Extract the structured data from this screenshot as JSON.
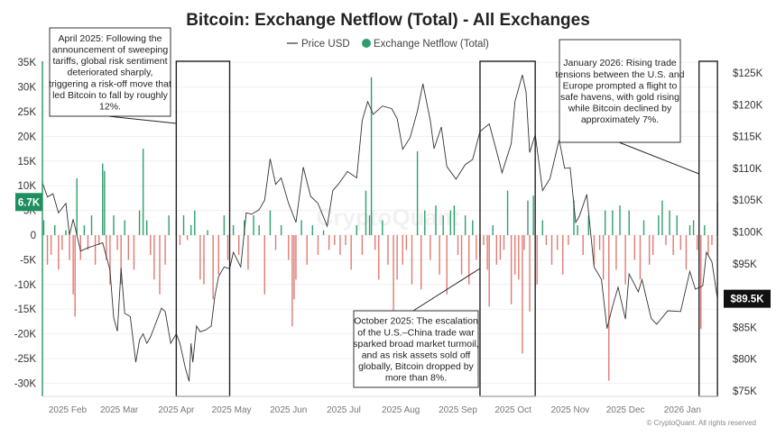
{
  "chart_data": {
    "type": "bar+line",
    "title": "Bitcoin: Exchange Netflow (Total) - All Exchanges",
    "legend": {
      "placement": "top-center",
      "items": [
        "Price USD",
        "Exchange Netflow (Total)"
      ]
    },
    "colors": {
      "price": "#333333",
      "inflow": "#2e9e6e",
      "outflow": "#e07a72",
      "current_netflow_badge": "#1f8f5f",
      "current_price_badge": "#111111"
    },
    "left_axis": {
      "ticks": [
        "35K",
        "30K",
        "25K",
        "20K",
        "15K",
        "10K",
        "5K",
        "0",
        "-5K",
        "-10K",
        "-15K",
        "-20K",
        "-25K",
        "-30K"
      ],
      "values": [
        35000,
        30000,
        25000,
        20000,
        15000,
        10000,
        5000,
        0,
        -5000,
        -10000,
        -15000,
        -20000,
        -25000,
        -30000
      ],
      "range": [
        -32500,
        35000
      ]
    },
    "right_axis": {
      "ticks": [
        "$125K",
        "$120K",
        "$115K",
        "$110K",
        "$105K",
        "$100K",
        "$95K",
        "$90K",
        "$85K",
        "$80K",
        "$75K"
      ],
      "values": [
        125000,
        120000,
        115000,
        110000,
        105000,
        100000,
        95000,
        90000,
        85000,
        80000,
        75000
      ],
      "range": [
        74000,
        127000
      ]
    },
    "x_axis": {
      "range": [
        "2025-01-18",
        "2026-01-20"
      ],
      "ticks": [
        {
          "date": "2025-02-01",
          "label": "2025 Feb"
        },
        {
          "date": "2025-03-01",
          "label": "2025 Mar"
        },
        {
          "date": "2025-04-01",
          "label": "2025 Apr"
        },
        {
          "date": "2025-05-01",
          "label": "2025 May"
        },
        {
          "date": "2025-06-01",
          "label": "2025 Jun"
        },
        {
          "date": "2025-07-01",
          "label": "2025 Jul"
        },
        {
          "date": "2025-08-01",
          "label": "2025 Aug"
        },
        {
          "date": "2025-09-01",
          "label": "2025 Sep"
        },
        {
          "date": "2025-10-01",
          "label": "2025 Oct"
        },
        {
          "date": "2025-11-01",
          "label": "2025 Nov"
        },
        {
          "date": "2025-12-01",
          "label": "2025 Dec"
        },
        {
          "date": "2026-01-01",
          "label": "2026 Jan"
        }
      ]
    },
    "grid": true,
    "current_netflow_label": "6.7K",
    "current_price_label": "$89.5K",
    "price_usd": [
      [
        "2025-01-18",
        108000
      ],
      [
        "2025-01-21",
        105500
      ],
      [
        "2025-01-24",
        106000
      ],
      [
        "2025-01-27",
        103000
      ],
      [
        "2025-01-31",
        104500
      ],
      [
        "2025-02-02",
        99500
      ],
      [
        "2025-02-04",
        102000
      ],
      [
        "2025-02-08",
        97000
      ],
      [
        "2025-02-12",
        97500
      ],
      [
        "2025-02-15",
        97800
      ],
      [
        "2025-02-20",
        98300
      ],
      [
        "2025-02-24",
        94000
      ],
      [
        "2025-02-26",
        86500
      ],
      [
        "2025-02-28",
        84400
      ],
      [
        "2025-03-02",
        94300
      ],
      [
        "2025-03-04",
        87200
      ],
      [
        "2025-03-07",
        86700
      ],
      [
        "2025-03-10",
        79500
      ],
      [
        "2025-03-12",
        83000
      ],
      [
        "2025-03-14",
        84000
      ],
      [
        "2025-03-16",
        82500
      ],
      [
        "2025-03-18",
        83500
      ],
      [
        "2025-03-20",
        85000
      ],
      [
        "2025-03-24",
        88000
      ],
      [
        "2025-03-26",
        87500
      ],
      [
        "2025-03-29",
        82500
      ],
      [
        "2025-04-01",
        84000
      ],
      [
        "2025-04-03",
        82500
      ],
      [
        "2025-04-06",
        78500
      ],
      [
        "2025-04-08",
        76500
      ],
      [
        "2025-04-09",
        82500
      ],
      [
        "2025-04-10",
        79500
      ],
      [
        "2025-04-12",
        85200
      ],
      [
        "2025-04-14",
        84300
      ],
      [
        "2025-04-17",
        84600
      ],
      [
        "2025-04-20",
        85200
      ],
      [
        "2025-04-22",
        90000
      ],
      [
        "2025-04-24",
        93000
      ],
      [
        "2025-04-27",
        94500
      ],
      [
        "2025-04-30",
        94200
      ],
      [
        "2025-05-02",
        96800
      ],
      [
        "2025-05-06",
        94500
      ],
      [
        "2025-05-09",
        103000
      ],
      [
        "2025-05-12",
        102800
      ],
      [
        "2025-05-16",
        103500
      ],
      [
        "2025-05-19",
        105000
      ],
      [
        "2025-05-22",
        111500
      ],
      [
        "2025-05-25",
        107500
      ],
      [
        "2025-05-28",
        108500
      ],
      [
        "2025-06-01",
        104500
      ],
      [
        "2025-06-05",
        101500
      ],
      [
        "2025-06-09",
        110200
      ],
      [
        "2025-06-13",
        105600
      ],
      [
        "2025-06-17",
        104500
      ],
      [
        "2025-06-22",
        100900
      ],
      [
        "2025-06-25",
        106500
      ],
      [
        "2025-06-28",
        107500
      ],
      [
        "2025-07-03",
        109500
      ],
      [
        "2025-07-08",
        108500
      ],
      [
        "2025-07-11",
        117500
      ],
      [
        "2025-07-14",
        120500
      ],
      [
        "2025-07-17",
        118500
      ],
      [
        "2025-07-22",
        119800
      ],
      [
        "2025-07-27",
        119400
      ],
      [
        "2025-07-30",
        117800
      ],
      [
        "2025-08-02",
        113000
      ],
      [
        "2025-08-06",
        114800
      ],
      [
        "2025-08-10",
        119000
      ],
      [
        "2025-08-13",
        123300
      ],
      [
        "2025-08-17",
        117500
      ],
      [
        "2025-08-19",
        113100
      ],
      [
        "2025-08-23",
        116500
      ],
      [
        "2025-08-26",
        110300
      ],
      [
        "2025-08-31",
        108300
      ],
      [
        "2025-09-05",
        110600
      ],
      [
        "2025-09-09",
        111400
      ],
      [
        "2025-09-13",
        115800
      ],
      [
        "2025-09-18",
        117000
      ],
      [
        "2025-09-22",
        112700
      ],
      [
        "2025-09-25",
        109300
      ],
      [
        "2025-09-30",
        113900
      ],
      [
        "2025-10-02",
        120500
      ],
      [
        "2025-10-06",
        124700
      ],
      [
        "2025-10-08",
        122000
      ],
      [
        "2025-10-10",
        112500
      ],
      [
        "2025-10-13",
        115300
      ],
      [
        "2025-10-17",
        106500
      ],
      [
        "2025-10-21",
        108400
      ],
      [
        "2025-10-26",
        114500
      ],
      [
        "2025-10-29",
        110000
      ],
      [
        "2025-11-01",
        110100
      ],
      [
        "2025-11-04",
        101500
      ],
      [
        "2025-11-06",
        102500
      ],
      [
        "2025-11-10",
        105900
      ],
      [
        "2025-11-14",
        94500
      ],
      [
        "2025-11-18",
        92500
      ],
      [
        "2025-11-21",
        84800
      ],
      [
        "2025-11-24",
        88300
      ],
      [
        "2025-11-27",
        91300
      ],
      [
        "2025-12-01",
        86300
      ],
      [
        "2025-12-03",
        93400
      ],
      [
        "2025-12-08",
        90600
      ],
      [
        "2025-12-10",
        92500
      ],
      [
        "2025-12-15",
        86400
      ],
      [
        "2025-12-18",
        85500
      ],
      [
        "2025-12-24",
        87600
      ],
      [
        "2025-12-31",
        87500
      ],
      [
        "2026-01-05",
        93800
      ],
      [
        "2026-01-08",
        91000
      ],
      [
        "2026-01-12",
        91500
      ],
      [
        "2026-01-14",
        96800
      ],
      [
        "2026-01-17",
        95300
      ],
      [
        "2026-01-20",
        89500
      ]
    ],
    "exchange_netflow": [
      [
        "2025-01-19",
        3000
      ],
      [
        "2025-01-21",
        -6000
      ],
      [
        "2025-01-23",
        -4000
      ],
      [
        "2025-01-25",
        2000
      ],
      [
        "2025-01-27",
        -7000
      ],
      [
        "2025-01-29",
        -3000
      ],
      [
        "2025-01-31",
        1000
      ],
      [
        "2025-02-02",
        -5000
      ],
      [
        "2025-02-04",
        -12000
      ],
      [
        "2025-02-05",
        -16500
      ],
      [
        "2025-02-06",
        11500
      ],
      [
        "2025-02-08",
        -5000
      ],
      [
        "2025-02-10",
        2000
      ],
      [
        "2025-02-12",
        -3000
      ],
      [
        "2025-02-14",
        4000
      ],
      [
        "2025-02-16",
        -6000
      ],
      [
        "2025-02-18",
        -2000
      ],
      [
        "2025-02-20",
        14500
      ],
      [
        "2025-02-21",
        13000
      ],
      [
        "2025-02-22",
        -5000
      ],
      [
        "2025-02-24",
        -10000
      ],
      [
        "2025-02-26",
        4000
      ],
      [
        "2025-02-28",
        -3000
      ],
      [
        "2025-03-02",
        -10000
      ],
      [
        "2025-03-04",
        3000
      ],
      [
        "2025-03-06",
        -5000
      ],
      [
        "2025-03-09",
        -7000
      ],
      [
        "2025-03-12",
        5000
      ],
      [
        "2025-03-14",
        17500
      ],
      [
        "2025-03-16",
        3000
      ],
      [
        "2025-03-18",
        -4000
      ],
      [
        "2025-03-20",
        -9000
      ],
      [
        "2025-03-23",
        -12000
      ],
      [
        "2025-03-26",
        -6000
      ],
      [
        "2025-03-28",
        4000
      ],
      [
        "2025-04-01",
        3000
      ],
      [
        "2025-04-03",
        -2000
      ],
      [
        "2025-04-05",
        4000
      ],
      [
        "2025-04-07",
        -1000
      ],
      [
        "2025-04-09",
        2000
      ],
      [
        "2025-04-11",
        5000
      ],
      [
        "2025-04-14",
        -9000
      ],
      [
        "2025-04-16",
        -10000
      ],
      [
        "2025-04-18",
        1000
      ],
      [
        "2025-04-21",
        -13000
      ],
      [
        "2025-04-24",
        -8000
      ],
      [
        "2025-04-27",
        4000
      ],
      [
        "2025-04-29",
        -5000
      ],
      [
        "2025-05-02",
        2000
      ],
      [
        "2025-05-05",
        -4000
      ],
      [
        "2025-05-08",
        3000
      ],
      [
        "2025-05-10",
        -7000
      ],
      [
        "2025-05-13",
        4000
      ],
      [
        "2025-05-16",
        2000
      ],
      [
        "2025-05-19",
        -12000
      ],
      [
        "2025-05-22",
        5000
      ],
      [
        "2025-05-25",
        -3000
      ],
      [
        "2025-05-28",
        2000
      ],
      [
        "2025-06-01",
        -5000
      ],
      [
        "2025-06-03",
        -18500
      ],
      [
        "2025-06-04",
        -13000
      ],
      [
        "2025-06-05",
        -9000
      ],
      [
        "2025-06-08",
        3000
      ],
      [
        "2025-06-11",
        -6000
      ],
      [
        "2025-06-14",
        2000
      ],
      [
        "2025-06-17",
        -4000
      ],
      [
        "2025-06-20",
        1000
      ],
      [
        "2025-06-23",
        -3000
      ],
      [
        "2025-06-26",
        -2000
      ],
      [
        "2025-06-29",
        -4000
      ],
      [
        "2025-07-02",
        -2000
      ],
      [
        "2025-07-05",
        -7000
      ],
      [
        "2025-07-08",
        2000
      ],
      [
        "2025-07-11",
        -4000
      ],
      [
        "2025-07-13",
        9000
      ],
      [
        "2025-07-15",
        4000
      ],
      [
        "2025-07-16",
        32000
      ],
      [
        "2025-07-18",
        -3000
      ],
      [
        "2025-07-20",
        -9000
      ],
      [
        "2025-07-22",
        3000
      ],
      [
        "2025-07-25",
        -6000
      ],
      [
        "2025-07-28",
        -16000
      ],
      [
        "2025-07-30",
        -9000
      ],
      [
        "2025-08-02",
        -6000
      ],
      [
        "2025-08-04",
        -3000
      ],
      [
        "2025-08-07",
        -10000
      ],
      [
        "2025-08-10",
        17000
      ],
      [
        "2025-08-12",
        -11000
      ],
      [
        "2025-08-14",
        5000
      ],
      [
        "2025-08-17",
        -5000
      ],
      [
        "2025-08-20",
        6000
      ],
      [
        "2025-08-22",
        -8000
      ],
      [
        "2025-08-24",
        4000
      ],
      [
        "2025-08-26",
        -12000
      ],
      [
        "2025-08-28",
        5000
      ],
      [
        "2025-08-30",
        6000
      ],
      [
        "2025-09-01",
        -4000
      ],
      [
        "2025-09-03",
        -8000
      ],
      [
        "2025-09-05",
        4000
      ],
      [
        "2025-09-07",
        -10000
      ],
      [
        "2025-09-09",
        3000
      ],
      [
        "2025-09-11",
        -5000
      ],
      [
        "2025-09-13",
        -4000
      ],
      [
        "2025-09-15",
        -2000
      ],
      [
        "2025-09-17",
        -7000
      ],
      [
        "2025-09-18",
        -14500
      ],
      [
        "2025-09-20",
        2000
      ],
      [
        "2025-09-22",
        -6000
      ],
      [
        "2025-09-24",
        -5000
      ],
      [
        "2025-09-26",
        -3000
      ],
      [
        "2025-09-28",
        9000
      ],
      [
        "2025-09-30",
        -14000
      ],
      [
        "2025-10-02",
        -8000
      ],
      [
        "2025-10-04",
        -9000
      ],
      [
        "2025-10-06",
        -24000
      ],
      [
        "2025-10-07",
        -3000
      ],
      [
        "2025-10-09",
        7000
      ],
      [
        "2025-10-10",
        -15500
      ],
      [
        "2025-10-12",
        8000
      ],
      [
        "2025-10-14",
        -10000
      ],
      [
        "2025-10-17",
        3000
      ],
      [
        "2025-10-19",
        -2000
      ],
      [
        "2025-10-22",
        -6000
      ],
      [
        "2025-10-25",
        -3000
      ],
      [
        "2025-10-28",
        -8000
      ],
      [
        "2025-10-31",
        -2000
      ],
      [
        "2025-11-03",
        7000
      ],
      [
        "2025-11-05",
        2000
      ],
      [
        "2025-11-08",
        -4000
      ],
      [
        "2025-11-11",
        4000
      ],
      [
        "2025-11-14",
        -6000
      ],
      [
        "2025-11-17",
        -3000
      ],
      [
        "2025-11-19",
        -9000
      ],
      [
        "2025-11-20",
        5000
      ],
      [
        "2025-11-22",
        -29500
      ],
      [
        "2025-11-24",
        5000
      ],
      [
        "2025-11-26",
        -7000
      ],
      [
        "2025-11-28",
        6000
      ],
      [
        "2025-12-01",
        -10000
      ],
      [
        "2025-12-03",
        5000
      ],
      [
        "2025-12-06",
        -5000
      ],
      [
        "2025-12-09",
        -9000
      ],
      [
        "2025-12-11",
        3000
      ],
      [
        "2025-12-14",
        -6000
      ],
      [
        "2025-12-16",
        -4000
      ],
      [
        "2025-12-19",
        4000
      ],
      [
        "2025-12-21",
        7000
      ],
      [
        "2025-12-23",
        -2000
      ],
      [
        "2025-12-25",
        5000
      ],
      [
        "2025-12-27",
        -4000
      ],
      [
        "2025-12-29",
        4000
      ],
      [
        "2025-12-31",
        -3000
      ],
      [
        "2026-01-03",
        -7000
      ],
      [
        "2026-01-05",
        2000
      ],
      [
        "2026-01-07",
        3000
      ],
      [
        "2026-01-09",
        -3000
      ],
      [
        "2026-01-11",
        -19000
      ],
      [
        "2026-01-13",
        2000
      ],
      [
        "2026-01-15",
        -4000
      ],
      [
        "2026-01-17",
        -2000
      ],
      [
        "2026-01-20",
        6700
      ]
    ],
    "highlight_periods": [
      [
        "2025-04-01",
        "2025-04-30"
      ],
      [
        "2025-09-13",
        "2025-10-13"
      ],
      [
        "2026-01-10",
        "2026-01-20"
      ]
    ],
    "annotations": [
      {
        "lines": [
          "April 2025: Following the",
          "announcement of sweeping",
          "tariffs, global risk sentiment",
          "deteriorated sharply,",
          "triggering a risk-off move that",
          "led Bitcoin to fall by roughly",
          "12%."
        ]
      },
      {
        "lines": [
          "October 2025: The escalation",
          "of the U.S.–China trade war",
          "sparked broad market turmoil,",
          "and as risk assets sold off",
          "globally, Bitcoin dropped by",
          "more than 8%."
        ]
      },
      {
        "lines": [
          "January 2026: Rising trade",
          "tensions between the U.S. and",
          "Europe prompted a flight to",
          "safe havens, with gold rising",
          "while Bitcoin declined by",
          "approximately 7%."
        ]
      }
    ]
  },
  "watermark": "CryptoQuant",
  "copyright": "© CryptoQuant. All rights reserved"
}
